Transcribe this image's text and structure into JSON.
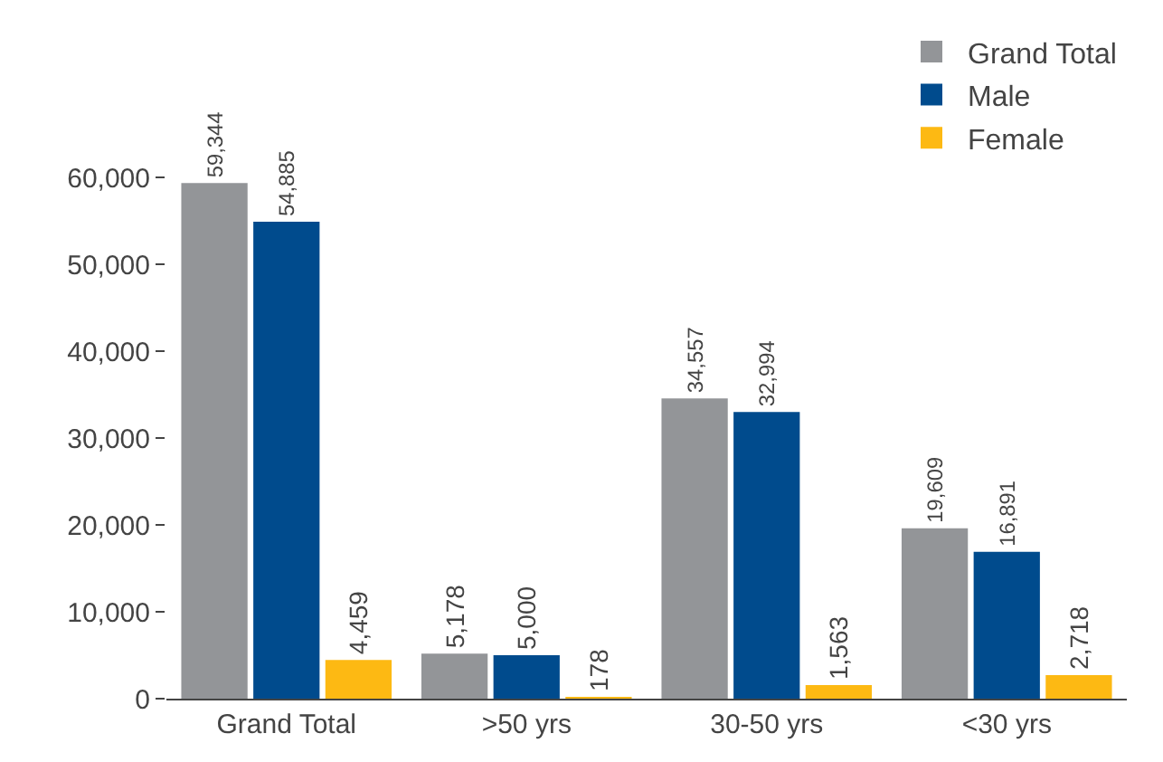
{
  "chart_data": {
    "type": "bar",
    "categories": [
      "Grand Total",
      ">50 yrs",
      "30-50 yrs",
      "<30 yrs"
    ],
    "series": [
      {
        "name": "Grand Total",
        "color": "#939598",
        "values": [
          59344,
          5178,
          34557,
          19609
        ]
      },
      {
        "name": "Male",
        "color": "#004b8d",
        "values": [
          54885,
          5000,
          32994,
          16891
        ]
      },
      {
        "name": "Female",
        "color": "#fdb913",
        "values": [
          4459,
          178,
          1563,
          2718
        ]
      }
    ],
    "ylim": [
      0,
      60000
    ],
    "yticks": [
      {
        "value": 0,
        "label": "0"
      },
      {
        "value": 10000,
        "label": "10,000"
      },
      {
        "value": 20000,
        "label": "20,000"
      },
      {
        "value": 30000,
        "label": "30,000"
      },
      {
        "value": 40000,
        "label": "40,000"
      },
      {
        "value": 50000,
        "label": "50,000"
      },
      {
        "value": 60000,
        "label": "60,000"
      }
    ],
    "value_labels": [
      [
        "59,344",
        "5,178",
        "34,557",
        "19,609"
      ],
      [
        "54,885",
        "5,000",
        "32,994",
        "16,891"
      ],
      [
        "4,459",
        "178",
        "1,563",
        "2,718"
      ]
    ],
    "legend": "top right"
  }
}
